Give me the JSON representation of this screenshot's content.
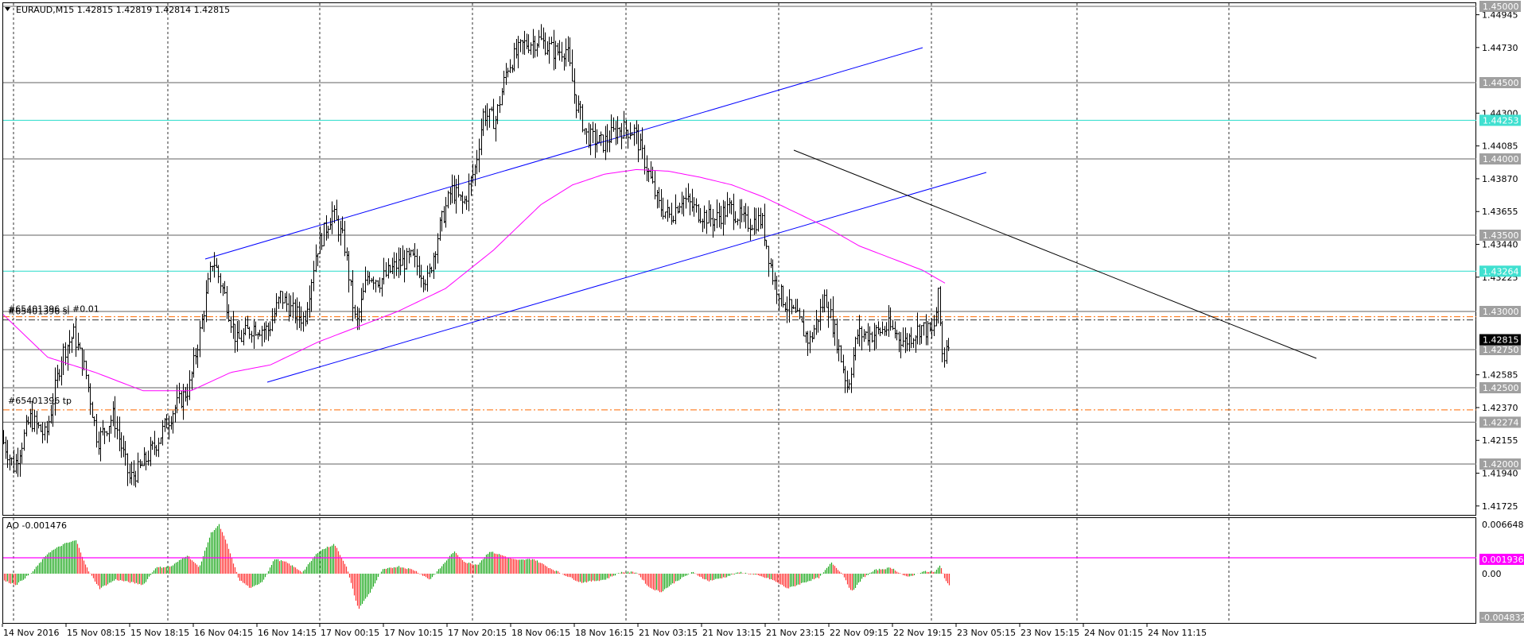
{
  "main_panel": {
    "title": "EURAUD,M15  1.42815 1.42819 1.42814 1.42815",
    "y_ticks": [
      "1.44945",
      "1.44730",
      "1.44300",
      "1.44085",
      "1.43870",
      "1.43655",
      "1.43440",
      "1.43225",
      "1.42585",
      "1.42370",
      "1.42155",
      "1.41940",
      "1.41725"
    ],
    "price_levels": [
      {
        "label": "1.45000",
        "value": 1.45,
        "kind": "gray"
      },
      {
        "label": "1.44500",
        "value": 1.445,
        "kind": "gray"
      },
      {
        "label": "1.44253",
        "value": 1.44253,
        "kind": "cyan"
      },
      {
        "label": "1.44000",
        "value": 1.44,
        "kind": "gray"
      },
      {
        "label": "1.43500",
        "value": 1.435,
        "kind": "gray"
      },
      {
        "label": "1.43264",
        "value": 1.43264,
        "kind": "cyan"
      },
      {
        "label": "1.43000",
        "value": 1.43,
        "kind": "gray"
      },
      {
        "label": "1.42750",
        "value": 1.4275,
        "kind": "gray"
      },
      {
        "label": "1.42500",
        "value": 1.425,
        "kind": "gray"
      },
      {
        "label": "1.42274",
        "value": 1.42274,
        "kind": "gray"
      },
      {
        "label": "1.42000",
        "value": 1.42,
        "kind": "gray"
      }
    ],
    "current_price": {
      "label": "1.42815",
      "value": 1.42815
    },
    "order_lines": [
      {
        "label": "#65401396 sl",
        "label2": "#65401396 sl #0.01",
        "value": 1.4296
      },
      {
        "label": "#65401396 tp",
        "value": 1.42355
      }
    ]
  },
  "ao_panel": {
    "title": "AO -0.001476",
    "y_ticks": [
      "0.006648",
      "0.00"
    ],
    "level": {
      "label": "0.001936",
      "value": 0.001936
    },
    "bottom_label": "-0.004832"
  },
  "x_axis_labels": [
    "14 Nov 2016",
    "15 Nov 08:15",
    "15 Nov 18:15",
    "16 Nov 04:15",
    "16 Nov 14:15",
    "17 Nov 00:15",
    "17 Nov 10:15",
    "17 Nov 20:15",
    "18 Nov 06:15",
    "18 Nov 16:15",
    "21 Nov 03:15",
    "21 Nov 13:15",
    "21 Nov 23:15",
    "22 Nov 09:15",
    "22 Nov 19:15",
    "23 Nov 05:15",
    "23 Nov 15:15",
    "24 Nov 01:15",
    "24 Nov 11:15"
  ],
  "colors": {
    "candle": "#000000",
    "ma": "#ff00ff",
    "trendline_blue": "#0000ff",
    "trendline_black": "#000000",
    "cyan_level": "#40e0d0",
    "gray_level": "#808080",
    "order_line": "#ff6a00",
    "ao_up": "#22aa22",
    "ao_down": "#ff3333",
    "ao_level": "#ff00ff",
    "price_badge": "#000000"
  },
  "chart_data": {
    "type": "candlestick",
    "symbol": "EURAUD",
    "timeframe": "M15",
    "ylim": [
      1.4168,
      1.4505
    ],
    "price_path": [
      [
        0,
        1.4222
      ],
      [
        20,
        1.4198
      ],
      [
        40,
        1.423
      ],
      [
        60,
        1.4218
      ],
      [
        80,
        1.4272
      ],
      [
        95,
        1.4285
      ],
      [
        110,
        1.426
      ],
      [
        125,
        1.4215
      ],
      [
        145,
        1.4232
      ],
      [
        165,
        1.419
      ],
      [
        180,
        1.4198
      ],
      [
        200,
        1.4215
      ],
      [
        220,
        1.4235
      ],
      [
        240,
        1.425
      ],
      [
        255,
        1.429
      ],
      [
        270,
        1.4335
      ],
      [
        285,
        1.431
      ],
      [
        300,
        1.428
      ],
      [
        320,
        1.429
      ],
      [
        340,
        1.4288
      ],
      [
        355,
        1.431
      ],
      [
        370,
        1.43
      ],
      [
        385,
        1.4295
      ],
      [
        400,
        1.434
      ],
      [
        420,
        1.4365
      ],
      [
        435,
        1.4345
      ],
      [
        450,
        1.429
      ],
      [
        465,
        1.4325
      ],
      [
        480,
        1.432
      ],
      [
        500,
        1.433
      ],
      [
        520,
        1.4335
      ],
      [
        540,
        1.432
      ],
      [
        555,
        1.4355
      ],
      [
        570,
        1.438
      ],
      [
        585,
        1.437
      ],
      [
        600,
        1.4395
      ],
      [
        610,
        1.443
      ],
      [
        625,
        1.4425
      ],
      [
        640,
        1.446
      ],
      [
        660,
        1.4475
      ],
      [
        680,
        1.4478
      ],
      [
        700,
        1.447
      ],
      [
        715,
        1.4472
      ],
      [
        725,
        1.444
      ],
      [
        740,
        1.4415
      ],
      [
        760,
        1.441
      ],
      [
        780,
        1.442
      ],
      [
        800,
        1.4418
      ],
      [
        815,
        1.4395
      ],
      [
        830,
        1.437
      ],
      [
        845,
        1.4362
      ],
      [
        860,
        1.4375
      ],
      [
        880,
        1.4365
      ],
      [
        900,
        1.436
      ],
      [
        920,
        1.4368
      ],
      [
        940,
        1.4358
      ],
      [
        960,
        1.436
      ],
      [
        975,
        1.432
      ],
      [
        990,
        1.4305
      ],
      [
        1005,
        1.4295
      ],
      [
        1020,
        1.428
      ],
      [
        1040,
        1.431
      ],
      [
        1055,
        1.428
      ],
      [
        1068,
        1.425
      ],
      [
        1080,
        1.4285
      ],
      [
        1100,
        1.4285
      ],
      [
        1120,
        1.429
      ],
      [
        1140,
        1.428
      ],
      [
        1160,
        1.429
      ],
      [
        1175,
        1.4285
      ],
      [
        1182,
        1.431
      ],
      [
        1188,
        1.4265
      ],
      [
        1193,
        1.4282
      ]
    ],
    "ma_path": [
      [
        0,
        1.43
      ],
      [
        60,
        1.427
      ],
      [
        120,
        1.426
      ],
      [
        180,
        1.4248
      ],
      [
        240,
        1.4248
      ],
      [
        290,
        1.426
      ],
      [
        340,
        1.4265
      ],
      [
        400,
        1.428
      ],
      [
        450,
        1.429
      ],
      [
        500,
        1.43
      ],
      [
        560,
        1.4315
      ],
      [
        620,
        1.434
      ],
      [
        680,
        1.437
      ],
      [
        720,
        1.4383
      ],
      [
        760,
        1.439
      ],
      [
        800,
        1.4393
      ],
      [
        840,
        1.4392
      ],
      [
        880,
        1.4388
      ],
      [
        920,
        1.4383
      ],
      [
        960,
        1.4375
      ],
      [
        1000,
        1.4365
      ],
      [
        1040,
        1.4355
      ],
      [
        1080,
        1.4343
      ],
      [
        1120,
        1.4335
      ],
      [
        1160,
        1.4327
      ],
      [
        1190,
        1.4318
      ]
    ],
    "ao_values_path": [
      [
        0,
        -0.0008
      ],
      [
        20,
        -0.0015
      ],
      [
        40,
        0.0002
      ],
      [
        60,
        0.0028
      ],
      [
        80,
        0.004
      ],
      [
        95,
        0.0045
      ],
      [
        110,
        0.0005
      ],
      [
        125,
        -0.002
      ],
      [
        145,
        -0.0008
      ],
      [
        165,
        -0.0012
      ],
      [
        180,
        -0.0015
      ],
      [
        195,
        0.0008
      ],
      [
        215,
        0.001
      ],
      [
        235,
        0.0025
      ],
      [
        250,
        0.0008
      ],
      [
        265,
        0.0055
      ],
      [
        275,
        0.0066
      ],
      [
        285,
        0.004
      ],
      [
        300,
        -0.0008
      ],
      [
        315,
        -0.002
      ],
      [
        330,
        -0.001
      ],
      [
        345,
        0.002
      ],
      [
        360,
        0.0015
      ],
      [
        380,
        0.0002
      ],
      [
        400,
        0.003
      ],
      [
        420,
        0.004
      ],
      [
        435,
        0.001
      ],
      [
        450,
        -0.0048
      ],
      [
        465,
        -0.0025
      ],
      [
        480,
        0.0005
      ],
      [
        500,
        0.001
      ],
      [
        520,
        0.0005
      ],
      [
        540,
        -0.0008
      ],
      [
        555,
        0.001
      ],
      [
        570,
        0.003
      ],
      [
        585,
        0.0015
      ],
      [
        600,
        0.0012
      ],
      [
        615,
        0.003
      ],
      [
        630,
        0.0025
      ],
      [
        650,
        0.0018
      ],
      [
        670,
        0.002
      ],
      [
        690,
        0.0008
      ],
      [
        710,
        -0.0002
      ],
      [
        730,
        -0.0012
      ],
      [
        760,
        -0.0008
      ],
      [
        780,
        0.0002
      ],
      [
        800,
        0.0002
      ],
      [
        815,
        -0.0018
      ],
      [
        830,
        -0.0025
      ],
      [
        850,
        -0.001
      ],
      [
        870,
        0.0002
      ],
      [
        890,
        -0.001
      ],
      [
        910,
        -0.0005
      ],
      [
        930,
        0.0002
      ],
      [
        950,
        -0.0002
      ],
      [
        970,
        -0.0008
      ],
      [
        990,
        -0.002
      ],
      [
        1010,
        -0.0012
      ],
      [
        1030,
        -0.0005
      ],
      [
        1045,
        0.0015
      ],
      [
        1060,
        -0.0002
      ],
      [
        1070,
        -0.0025
      ],
      [
        1085,
        -0.0005
      ],
      [
        1100,
        0.0005
      ],
      [
        1120,
        0.0008
      ],
      [
        1140,
        -0.0005
      ],
      [
        1160,
        0.0003
      ],
      [
        1175,
        0.0002
      ],
      [
        1182,
        0.0012
      ],
      [
        1188,
        -0.001
      ],
      [
        1193,
        -0.0015
      ]
    ],
    "ao_ylim": [
      -0.004832,
      0.006648
    ]
  }
}
